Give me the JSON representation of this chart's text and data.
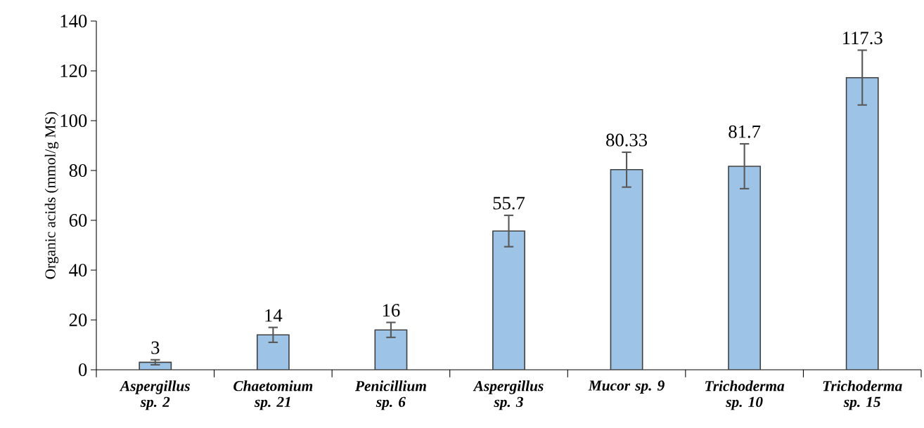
{
  "chart_data": {
    "type": "bar",
    "ylabel": "Organic acids (mmol/g MS)",
    "categories": [
      "Aspergillus sp. 2",
      "Chaetomium sp. 21",
      "Penicillium sp. 6",
      "Aspergillus sp. 3",
      "Mucor sp. 9",
      "Trichoderma sp. 10",
      "Trichoderma sp. 15"
    ],
    "values": [
      3,
      14,
      16,
      55.7,
      80.33,
      81.7,
      117.3
    ],
    "errors": [
      1,
      3,
      3,
      6.3,
      7,
      9,
      11
    ],
    "color": "#9dc3e6",
    "ylim": [
      0,
      140
    ],
    "yticks": [
      0,
      20,
      40,
      60,
      80,
      100,
      120,
      140
    ],
    "data_labels": true,
    "grid": false
  }
}
